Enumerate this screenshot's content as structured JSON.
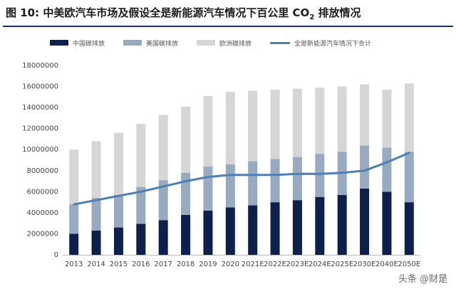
{
  "title_text": "图 10:  中美欧汽车市场及假设全是新能源汽车情况下百公里 CO",
  "title_sub": "2",
  "title_tail": " 排放情况",
  "watermark": "头条 @财是",
  "colors": {
    "china": "#0d1f4d",
    "usa": "#98a9c2",
    "europe": "#d6d6d6",
    "total": "#4a7fb8",
    "rule": "#1b2b6b"
  },
  "chart_data": {
    "type": "bar",
    "stacked": true,
    "title": "中美欧汽车市场及假设全是新能源汽车情况下百公里 CO2 排放情况",
    "categories": [
      "2013",
      "2014",
      "2015",
      "2016",
      "2017",
      "2018",
      "2019",
      "2020",
      "2021E",
      "2022E",
      "2023E",
      "2024E",
      "2025E",
      "2030E",
      "2040E",
      "2050E"
    ],
    "series": [
      {
        "name": "中国碳排放",
        "values": [
          2000000,
          2300000,
          2600000,
          2950000,
          3300000,
          3800000,
          4200000,
          4500000,
          4700000,
          5000000,
          5200000,
          5500000,
          5700000,
          6300000,
          6000000,
          5000000
        ]
      },
      {
        "name": "美国碳排放",
        "values": [
          2800000,
          3100000,
          3100000,
          3500000,
          3800000,
          4000000,
          4200000,
          4100000,
          4200000,
          4100000,
          4100000,
          4100000,
          4100000,
          4100000,
          4200000,
          4800000
        ]
      },
      {
        "name": "欧洲碳排放",
        "values": [
          5200000,
          5400000,
          5900000,
          6000000,
          6200000,
          6300000,
          6700000,
          6900000,
          6700000,
          6600000,
          6500000,
          6300000,
          6200000,
          5800000,
          5500000,
          6500000
        ]
      }
    ],
    "line": {
      "name": "全是新能源汽车情况下合计",
      "values": [
        4800000,
        5200000,
        5600000,
        6000000,
        6500000,
        7000000,
        7400000,
        7600000,
        7600000,
        7600000,
        7700000,
        7700000,
        7800000,
        8000000,
        8800000,
        9700000
      ]
    },
    "yticks": [
      "0",
      "2000000",
      "4000000",
      "6000000",
      "8000000",
      "10000000",
      "12000000",
      "14000000",
      "16000000",
      "18000000"
    ],
    "ylim": [
      0,
      18000000
    ],
    "legend_position": "top"
  }
}
